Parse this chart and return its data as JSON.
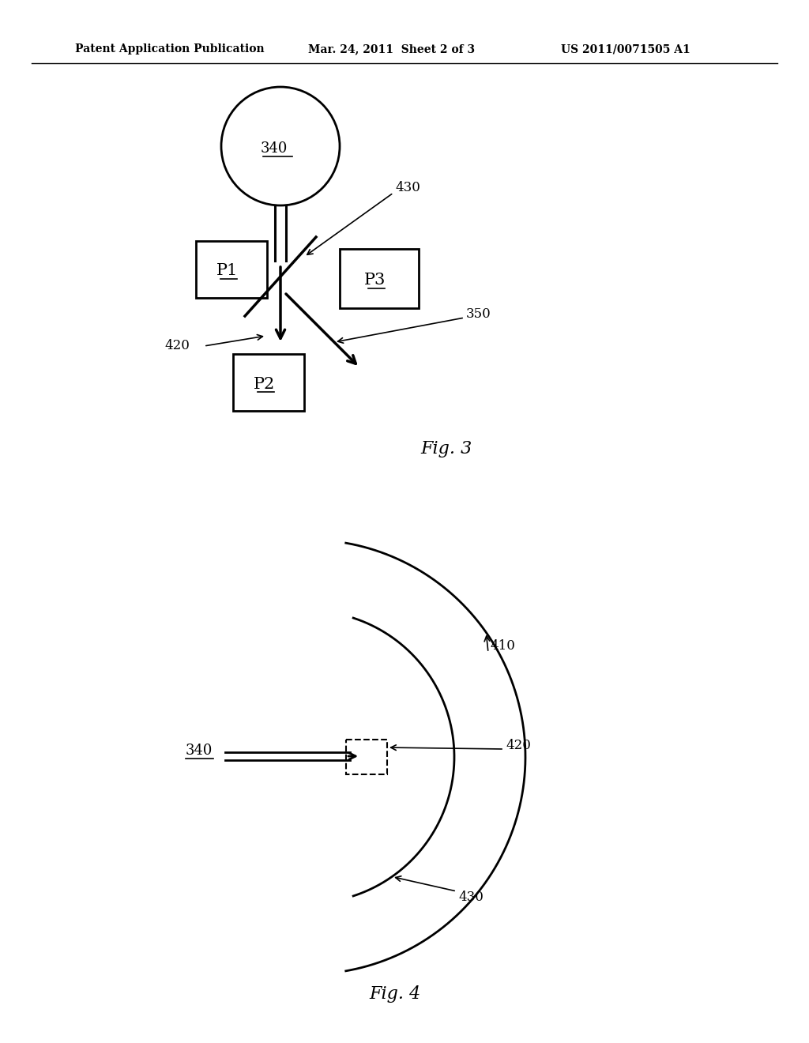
{
  "bg_color": "#ffffff",
  "line_color": "#000000",
  "header_left": "Patent Application Publication",
  "header_mid": "Mar. 24, 2011  Sheet 2 of 3",
  "header_right": "US 2011/0071505 A1",
  "fig3_label": "Fig. 3",
  "fig4_label": "Fig. 4",
  "fig3_340_label": "340",
  "fig3_430_label": "430",
  "fig3_350_label": "350",
  "fig3_420_label": "420",
  "fig3_P1_label": "P1",
  "fig3_P2_label": "P2",
  "fig3_P3_label": "P3",
  "fig4_340_label": "340",
  "fig4_410_label": "410",
  "fig4_420_label": "420",
  "fig4_430_label": "430"
}
